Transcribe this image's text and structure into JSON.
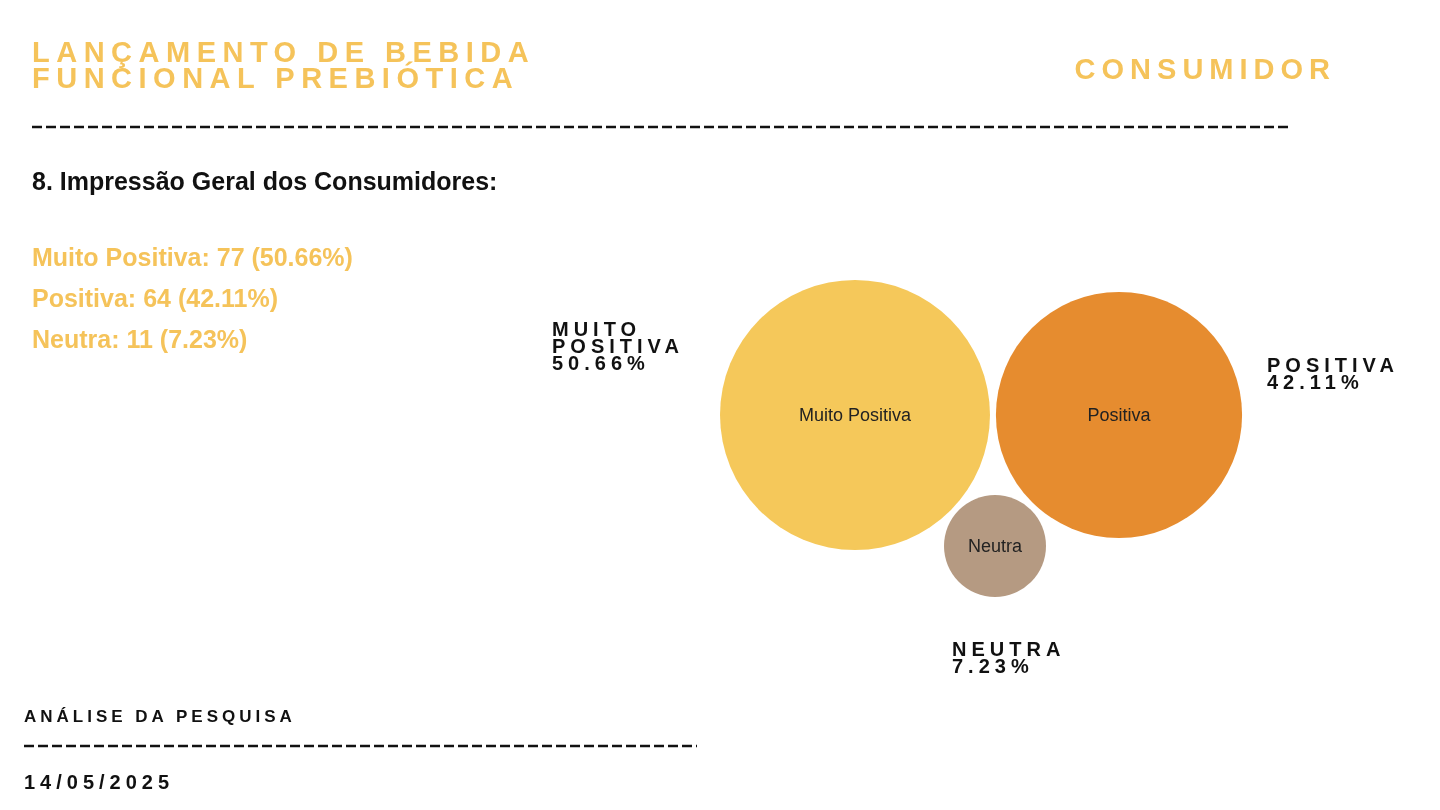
{
  "chart_data": {
    "type": "other",
    "title": "LANÇAMENTO DE BEBIDA\nFUNCIONAL PREBIÓTICA",
    "subtitle": "8. Impressão Geral dos Consumidores:",
    "categories": [
      "Muito Positiva",
      "Positiva",
      "Neutra"
    ],
    "values": [
      50.66,
      42.11,
      7.23
    ],
    "colors": [
      "#f5c85a",
      "#e68c2f",
      "#b59a82"
    ],
    "value_labels": [
      "MUITO\nPOSITIVA\n50.66%",
      "POSITIVA\n42.11%",
      "NEUTRA\n7.23%"
    ],
    "annotations": [
      "CONSUMIDOR",
      "Muito Positiva: 77 (50.66%)",
      "Positiva: 64 (42.11%)",
      "Neutra: 11 (7.23%)",
      "ANÁLISE DA PESQUISA",
      "14/05/2025"
    ]
  }
}
